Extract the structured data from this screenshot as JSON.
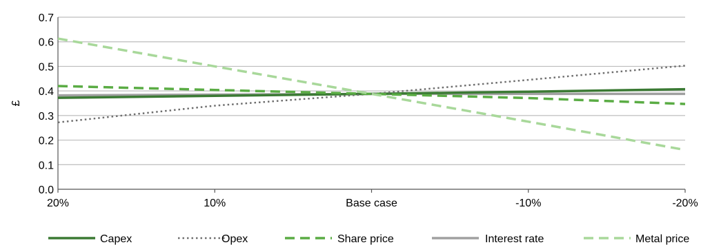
{
  "chart_data": {
    "type": "line",
    "ylabel": "£",
    "ylim": [
      0,
      0.7
    ],
    "yticks": [
      "0.0",
      "0.1",
      "0.2",
      "0.3",
      "0.4",
      "0.5",
      "0.6",
      "0.7"
    ],
    "categories": [
      "20%",
      "10%",
      "Base case",
      "-10%",
      "-20%"
    ],
    "grid": true,
    "legend_position": "bottom",
    "series": [
      {
        "name": "Capex",
        "values": [
          0.372,
          0.38,
          0.388,
          0.397,
          0.407
        ],
        "color": "#3b7a34",
        "style": "solid"
      },
      {
        "name": "Opex",
        "values": [
          0.272,
          0.34,
          0.388,
          0.445,
          0.503
        ],
        "color": "#6e6e6e",
        "style": "dotted"
      },
      {
        "name": "Share price",
        "values": [
          0.42,
          0.404,
          0.388,
          0.371,
          0.347
        ],
        "color": "#5aac44",
        "style": "dashed"
      },
      {
        "name": "Interest rate",
        "values": [
          0.382,
          0.385,
          0.388,
          0.388,
          0.388
        ],
        "color": "#a0a0a0",
        "style": "solid"
      },
      {
        "name": "Metal price",
        "values": [
          0.613,
          0.5,
          0.388,
          0.275,
          0.16
        ],
        "color": "#a8d89a",
        "style": "dashed"
      }
    ]
  }
}
